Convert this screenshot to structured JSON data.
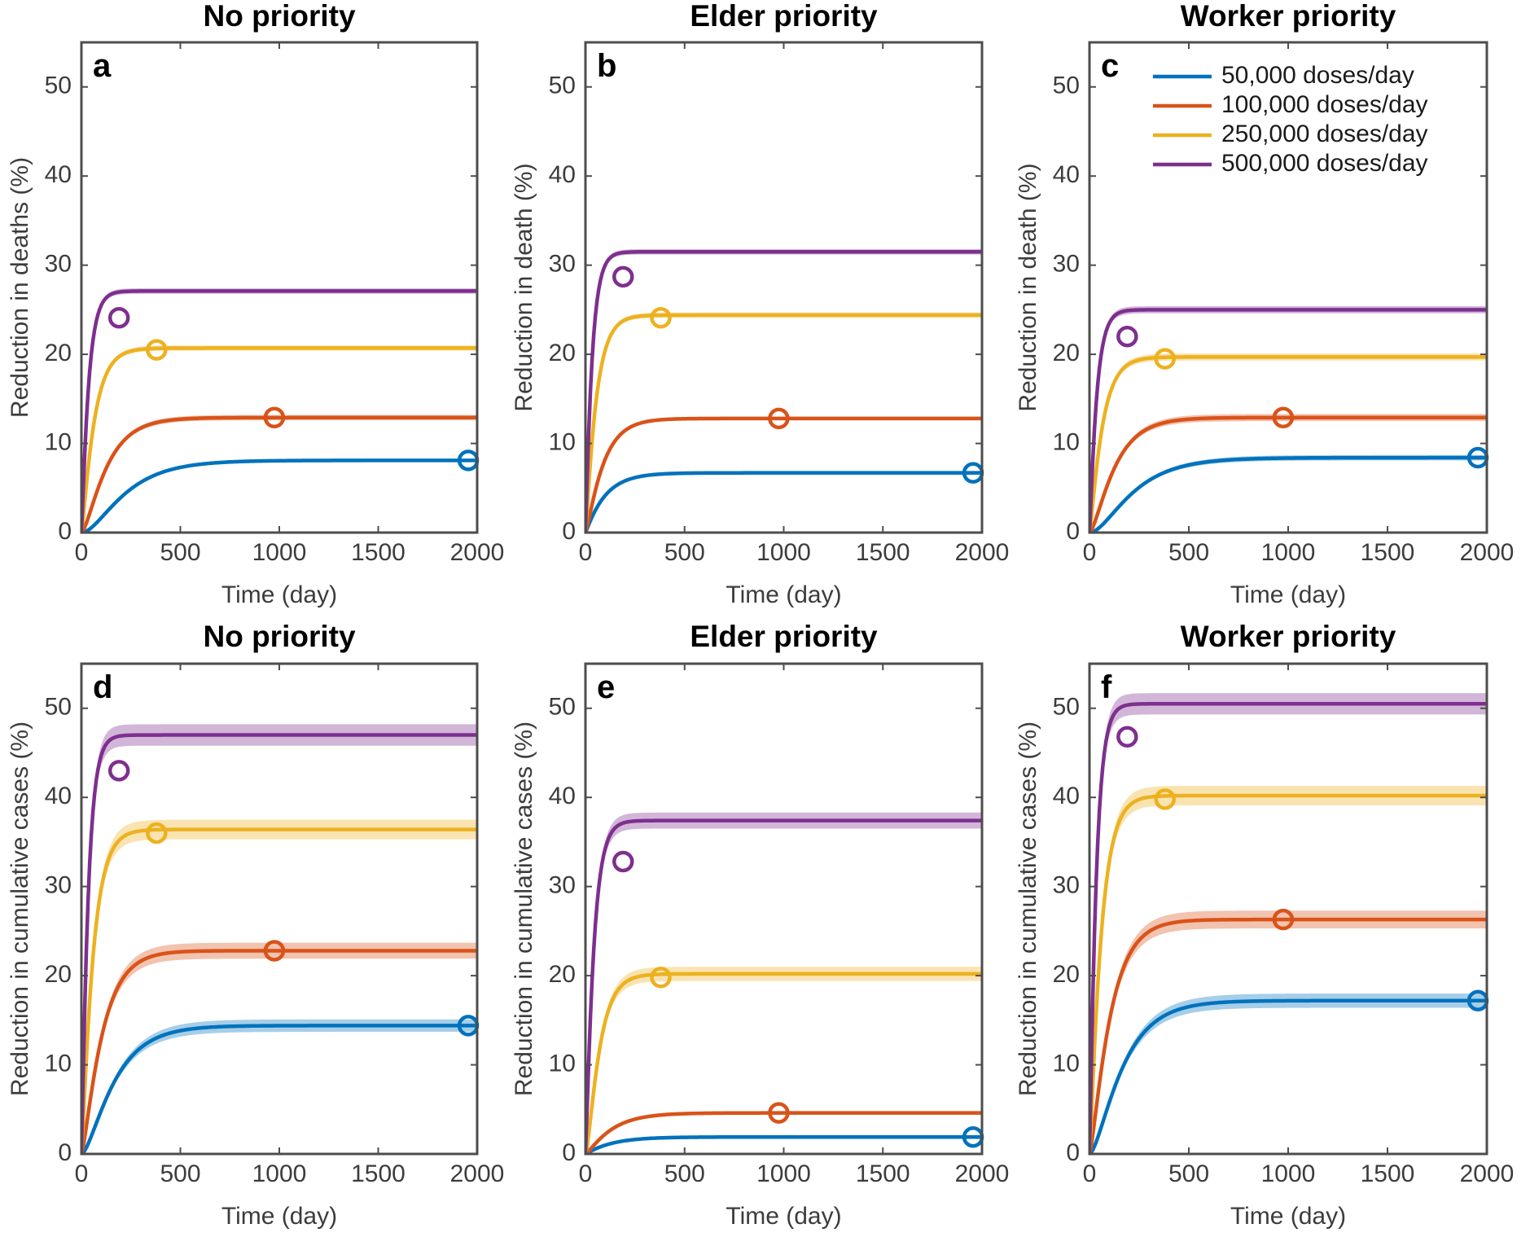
{
  "colors": {
    "50,000 doses/day": "#0072BD",
    "100,000 doses/day": "#D95319",
    "250,000 doses/day": "#EDB120",
    "500,000 doses/day": "#7E2F8E"
  },
  "legend": {
    "placement": "top-right of panel c",
    "entries": [
      "50,000 doses/day",
      "100,000 doses/day",
      "250,000 doses/day",
      "500,000 doses/day"
    ]
  },
  "chart_data": [
    {
      "id": "a",
      "type": "line",
      "title": "No priority",
      "xlabel": "Time (day)",
      "ylabel": "Reduction in deaths (%)",
      "xlim": [
        0,
        2000
      ],
      "ylim": [
        0,
        55
      ],
      "xticks": [
        0,
        500,
        1000,
        1500,
        2000
      ],
      "yticks": [
        0,
        10,
        20,
        30,
        40,
        50
      ],
      "series": [
        {
          "name": "50,000 doses/day",
          "plateau": 8.1,
          "rate_per_day": 0.006,
          "shape": 2,
          "band": 0.2,
          "marker": [
            1955,
            8.1
          ]
        },
        {
          "name": "100,000 doses/day",
          "plateau": 12.9,
          "rate_per_day": 0.0095,
          "shape": 1.6,
          "band": 0.3,
          "marker": [
            975,
            12.9
          ]
        },
        {
          "name": "250,000 doses/day",
          "plateau": 20.7,
          "rate_per_day": 0.0175,
          "shape": 1.3,
          "band": 0.3,
          "marker": [
            380,
            20.5
          ]
        },
        {
          "name": "500,000 doses/day",
          "plateau": 27.1,
          "rate_per_day": 0.03,
          "shape": 1.2,
          "band": 0.3,
          "marker": [
            190,
            24.1
          ]
        }
      ]
    },
    {
      "id": "b",
      "type": "line",
      "title": "Elder priority",
      "xlabel": "Time (day)",
      "ylabel": "Reduction in death (%)",
      "xlim": [
        0,
        2000
      ],
      "ylim": [
        0,
        55
      ],
      "xticks": [
        0,
        500,
        1000,
        1500,
        2000
      ],
      "yticks": [
        0,
        10,
        20,
        30,
        40,
        50
      ],
      "series": [
        {
          "name": "50,000 doses/day",
          "plateau": 6.7,
          "rate_per_day": 0.0105,
          "shape": 1.1,
          "band": 0.2,
          "marker": [
            1955,
            6.7
          ]
        },
        {
          "name": "100,000 doses/day",
          "plateau": 12.8,
          "rate_per_day": 0.0125,
          "shape": 1.3,
          "band": 0.2,
          "marker": [
            975,
            12.8
          ]
        },
        {
          "name": "250,000 doses/day",
          "plateau": 24.4,
          "rate_per_day": 0.02,
          "shape": 1.2,
          "band": 0.3,
          "marker": [
            380,
            24.1
          ]
        },
        {
          "name": "500,000 doses/day",
          "plateau": 31.5,
          "rate_per_day": 0.032,
          "shape": 1.15,
          "band": 0.3,
          "marker": [
            190,
            28.7
          ]
        }
      ]
    },
    {
      "id": "c",
      "type": "line",
      "title": "Worker priority",
      "xlabel": "Time (day)",
      "ylabel": "Reduction in death (%)",
      "xlim": [
        0,
        2000
      ],
      "ylim": [
        0,
        55
      ],
      "xticks": [
        0,
        500,
        1000,
        1500,
        2000
      ],
      "yticks": [
        0,
        10,
        20,
        30,
        40,
        50
      ],
      "series": [
        {
          "name": "50,000 doses/day",
          "plateau": 8.4,
          "rate_per_day": 0.006,
          "shape": 2,
          "band": 0.3,
          "marker": [
            1955,
            8.4
          ]
        },
        {
          "name": "100,000 doses/day",
          "plateau": 12.9,
          "rate_per_day": 0.0095,
          "shape": 1.6,
          "band": 0.4,
          "marker": [
            975,
            12.9
          ]
        },
        {
          "name": "250,000 doses/day",
          "plateau": 19.7,
          "rate_per_day": 0.0175,
          "shape": 1.3,
          "band": 0.4,
          "marker": [
            380,
            19.5
          ]
        },
        {
          "name": "500,000 doses/day",
          "plateau": 25.0,
          "rate_per_day": 0.03,
          "shape": 1.2,
          "band": 0.4,
          "marker": [
            190,
            22.0
          ]
        }
      ]
    },
    {
      "id": "d",
      "type": "line",
      "title": "No priority",
      "xlabel": "Time (day)",
      "ylabel": "Reduction in cumulative cases (%)",
      "xlim": [
        0,
        2000
      ],
      "ylim": [
        0,
        55
      ],
      "xticks": [
        0,
        500,
        1000,
        1500,
        2000
      ],
      "yticks": [
        0,
        10,
        20,
        30,
        40,
        50
      ],
      "series": [
        {
          "name": "50,000 doses/day",
          "plateau": 14.4,
          "rate_per_day": 0.0075,
          "shape": 1.7,
          "band": 0.7,
          "marker": [
            1955,
            14.4
          ]
        },
        {
          "name": "100,000 doses/day",
          "plateau": 22.8,
          "rate_per_day": 0.011,
          "shape": 1.4,
          "band": 0.9,
          "marker": [
            975,
            22.8
          ]
        },
        {
          "name": "250,000 doses/day",
          "plateau": 36.4,
          "rate_per_day": 0.019,
          "shape": 1.25,
          "band": 1.1,
          "marker": [
            380,
            36.0
          ]
        },
        {
          "name": "500,000 doses/day",
          "plateau": 47.0,
          "rate_per_day": 0.032,
          "shape": 1.2,
          "band": 1.2,
          "marker": [
            190,
            43.0
          ]
        }
      ]
    },
    {
      "id": "e",
      "type": "line",
      "title": "Elder priority",
      "xlabel": "Time (day)",
      "ylabel": "Reduction in cumulative cases (%)",
      "xlim": [
        0,
        2000
      ],
      "ylim": [
        0,
        55
      ],
      "xticks": [
        0,
        500,
        1000,
        1500,
        2000
      ],
      "yticks": [
        0,
        10,
        20,
        30,
        40,
        50
      ],
      "series": [
        {
          "name": "50,000 doses/day",
          "plateau": 1.9,
          "rate_per_day": 0.008,
          "shape": 1.1,
          "band": 0.1,
          "marker": [
            1955,
            1.9
          ]
        },
        {
          "name": "100,000 doses/day",
          "plateau": 4.6,
          "rate_per_day": 0.0085,
          "shape": 1.3,
          "band": 0.2,
          "marker": [
            975,
            4.6
          ]
        },
        {
          "name": "250,000 doses/day",
          "plateau": 20.2,
          "rate_per_day": 0.0175,
          "shape": 1.6,
          "band": 0.8,
          "marker": [
            380,
            19.8
          ]
        },
        {
          "name": "500,000 doses/day",
          "plateau": 37.4,
          "rate_per_day": 0.027,
          "shape": 1.25,
          "band": 0.9,
          "marker": [
            190,
            32.8
          ]
        }
      ]
    },
    {
      "id": "f",
      "type": "line",
      "title": "Worker priority",
      "xlabel": "Time (day)",
      "ylabel": "Reduction in cumulative cases (%)",
      "xlim": [
        0,
        2000
      ],
      "ylim": [
        0,
        55
      ],
      "xticks": [
        0,
        500,
        1000,
        1500,
        2000
      ],
      "yticks": [
        0,
        10,
        20,
        30,
        40,
        50
      ],
      "series": [
        {
          "name": "50,000 doses/day",
          "plateau": 17.2,
          "rate_per_day": 0.0075,
          "shape": 1.7,
          "band": 0.8,
          "marker": [
            1955,
            17.2
          ]
        },
        {
          "name": "100,000 doses/day",
          "plateau": 26.3,
          "rate_per_day": 0.011,
          "shape": 1.4,
          "band": 1.0,
          "marker": [
            975,
            26.3
          ]
        },
        {
          "name": "250,000 doses/day",
          "plateau": 40.2,
          "rate_per_day": 0.019,
          "shape": 1.25,
          "band": 1.1,
          "marker": [
            380,
            39.8
          ]
        },
        {
          "name": "500,000 doses/day",
          "plateau": 50.5,
          "rate_per_day": 0.032,
          "shape": 1.2,
          "band": 1.2,
          "marker": [
            190,
            46.8
          ]
        }
      ]
    }
  ]
}
